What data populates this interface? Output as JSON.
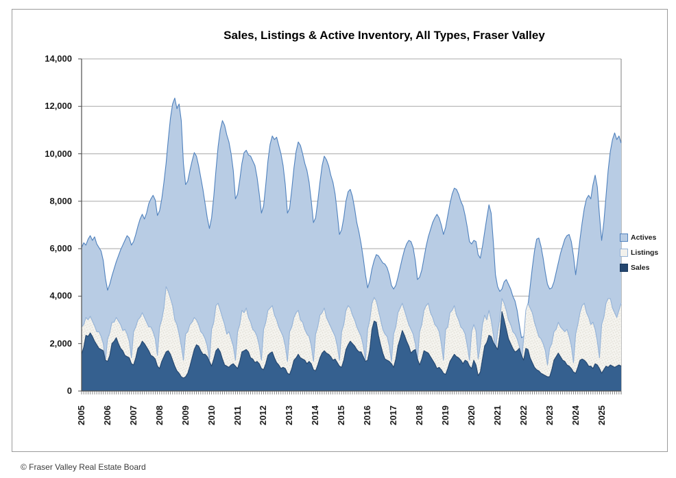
{
  "footer": {
    "copyright": "© Fraser Valley Real Estate Board"
  },
  "chart_data": {
    "type": "area",
    "title": "Sales, Listings & Active Inventory, All Types, Fraser Valley",
    "x_unit": "month",
    "x_range": "Jan 2005 - Oct 2025",
    "x_tick_labels": [
      "2005",
      "2006",
      "2007",
      "2008",
      "2009",
      "2010",
      "2011",
      "2012",
      "2013",
      "2014",
      "2015",
      "2016",
      "2017",
      "2018",
      "2019",
      "2020",
      "2021",
      "2022",
      "2023",
      "2024",
      "2025"
    ],
    "y_tick_values": [
      0,
      2000,
      4000,
      6000,
      8000,
      10000,
      12000,
      14000
    ],
    "y_tick_labels": [
      "0",
      "2,000",
      "4,000",
      "6,000",
      "8,000",
      "10,000",
      "12,000",
      "14,000"
    ],
    "ylim": [
      0,
      14000
    ],
    "grid": "horizontal",
    "legend_position": "right",
    "series": [
      {
        "name": "Actives",
        "fill": "#B8CCE4",
        "stroke": "#4F81BD",
        "legend_fill": "#B8CCE4",
        "legend_border": "#4F81BD",
        "values": [
          6050,
          6250,
          6150,
          6400,
          6550,
          6350,
          6500,
          6200,
          6050,
          5900,
          5500,
          4750,
          4250,
          4500,
          4850,
          5150,
          5450,
          5700,
          5950,
          6150,
          6350,
          6550,
          6450,
          6150,
          6300,
          6600,
          6950,
          7250,
          7450,
          7250,
          7500,
          7900,
          8100,
          8250,
          8050,
          7400,
          7600,
          8100,
          8800,
          9600,
          10600,
          11500,
          12100,
          12350,
          11900,
          12100,
          11400,
          9600,
          8700,
          8850,
          9300,
          9700,
          10050,
          9900,
          9500,
          9000,
          8500,
          7900,
          7300,
          6850,
          7300,
          8200,
          9300,
          10300,
          11000,
          11400,
          11200,
          10800,
          10500,
          10000,
          9300,
          8100,
          8300,
          8900,
          9600,
          10050,
          10150,
          9950,
          9900,
          9700,
          9500,
          9000,
          8300,
          7500,
          7800,
          8700,
          9700,
          10400,
          10750,
          10600,
          10700,
          10350,
          10000,
          9500,
          8700,
          7500,
          7700,
          8500,
          9400,
          10100,
          10500,
          10350,
          10000,
          9600,
          9300,
          8800,
          8000,
          7100,
          7300,
          8000,
          8800,
          9500,
          9900,
          9750,
          9500,
          9100,
          8800,
          8300,
          7500,
          6600,
          6800,
          7300,
          8000,
          8400,
          8500,
          8200,
          7700,
          7100,
          6700,
          6200,
          5600,
          4900,
          4350,
          4650,
          5150,
          5500,
          5750,
          5700,
          5550,
          5400,
          5350,
          5200,
          4900,
          4450,
          4300,
          4450,
          4800,
          5200,
          5600,
          5950,
          6200,
          6350,
          6300,
          6050,
          5500,
          4700,
          4800,
          5100,
          5600,
          6100,
          6500,
          6800,
          7100,
          7300,
          7450,
          7300,
          7000,
          6600,
          6900,
          7400,
          7900,
          8300,
          8550,
          8500,
          8300,
          8000,
          7800,
          7400,
          6900,
          6300,
          6200,
          6350,
          6300,
          5750,
          5600,
          6100,
          6700,
          7300,
          7850,
          7500,
          6300,
          4900,
          4400,
          4200,
          4300,
          4600,
          4700,
          4500,
          4300,
          4000,
          3800,
          3400,
          2800,
          2250,
          2300,
          2800,
          3600,
          4400,
          5200,
          5900,
          6400,
          6450,
          6100,
          5600,
          5000,
          4500,
          4300,
          4350,
          4600,
          5000,
          5400,
          5800,
          6100,
          6400,
          6550,
          6600,
          6300,
          5700,
          4900,
          5600,
          6400,
          7100,
          7700,
          8100,
          8250,
          8100,
          8700,
          9100,
          8600,
          7400,
          6350,
          7100,
          8200,
          9300,
          10100,
          10600,
          10880,
          10600,
          10750,
          10450
        ]
      },
      {
        "name": "Listings",
        "fill": "#F4F3EE",
        "texture": true,
        "stroke": "#95B3D7",
        "legend_fill": "#F2F1EC",
        "legend_border": "#95B3D7",
        "values": [
          2700,
          2800,
          3100,
          3000,
          3150,
          2950,
          2750,
          2500,
          2500,
          2300,
          2000,
          1300,
          2200,
          2450,
          2900,
          2900,
          3100,
          2950,
          2800,
          2550,
          2600,
          2400,
          2100,
          1400,
          2500,
          2700,
          3000,
          3100,
          3300,
          3100,
          2900,
          2700,
          2700,
          2500,
          2200,
          1500,
          2700,
          3000,
          3500,
          4400,
          4200,
          3900,
          3600,
          3000,
          2800,
          2400,
          1900,
          1300,
          2400,
          2500,
          2800,
          2900,
          3100,
          3000,
          2800,
          2500,
          2400,
          2200,
          1900,
          1300,
          2600,
          2900,
          3600,
          3700,
          3400,
          3100,
          2800,
          2400,
          2500,
          2200,
          1900,
          1300,
          2500,
          2800,
          3400,
          3300,
          3500,
          3100,
          2900,
          2600,
          2500,
          2300,
          1900,
          1300,
          2600,
          2900,
          3400,
          3500,
          3600,
          3200,
          3000,
          2700,
          2500,
          2300,
          1900,
          1250,
          2500,
          2700,
          3100,
          3300,
          3400,
          3000,
          2900,
          2600,
          2400,
          2300,
          1900,
          1250,
          2400,
          2700,
          3200,
          3300,
          3500,
          3100,
          2900,
          2700,
          2500,
          2300,
          1900,
          1300,
          2500,
          2800,
          3400,
          3600,
          3500,
          3200,
          3000,
          2700,
          2500,
          2300,
          1900,
          1300,
          2600,
          3000,
          3700,
          3950,
          3800,
          3400,
          3000,
          2600,
          2400,
          2300,
          1900,
          1250,
          2400,
          2700,
          3300,
          3500,
          3700,
          3400,
          3100,
          2800,
          2600,
          2400,
          2000,
          1300,
          2500,
          2800,
          3400,
          3600,
          3700,
          3300,
          3100,
          2800,
          2700,
          2500,
          2000,
          1300,
          2600,
          2700,
          3300,
          3400,
          3600,
          3200,
          3000,
          2700,
          2600,
          2400,
          1900,
          1300,
          2500,
          2800,
          2550,
          1350,
          1900,
          2800,
          3200,
          3000,
          3400,
          3000,
          2400,
          1700,
          2500,
          3000,
          3900,
          3700,
          3400,
          3000,
          2800,
          2500,
          2400,
          2200,
          1900,
          1200,
          2200,
          3400,
          3700,
          3500,
          3300,
          2900,
          2600,
          2300,
          2200,
          2000,
          1700,
          1100,
          1800,
          2000,
          2500,
          2600,
          2900,
          2700,
          2600,
          2500,
          2600,
          2300,
          1900,
          1200,
          2400,
          2800,
          3300,
          3600,
          3700,
          3300,
          3100,
          2800,
          2900,
          2600,
          2100,
          1400,
          2800,
          3100,
          3700,
          3900,
          3900,
          3500,
          3300,
          3100,
          3400,
          3700
        ]
      },
      {
        "name": "Sales",
        "fill": "#35608F",
        "stroke": "#24466E",
        "legend_fill": "#24466E",
        "legend_border": "#17375D",
        "values": [
          1550,
          1850,
          2350,
          2300,
          2450,
          2300,
          2100,
          1950,
          1800,
          1750,
          1700,
          1300,
          1250,
          1500,
          2000,
          2100,
          2250,
          2000,
          1800,
          1700,
          1500,
          1450,
          1400,
          1150,
          1100,
          1400,
          1800,
          1900,
          2100,
          2000,
          1850,
          1700,
          1500,
          1450,
          1350,
          1050,
          950,
          1250,
          1450,
          1650,
          1700,
          1550,
          1300,
          1050,
          850,
          750,
          600,
          550,
          600,
          750,
          1050,
          1400,
          1750,
          1950,
          1900,
          1700,
          1550,
          1550,
          1450,
          1250,
          1050,
          1350,
          1700,
          1800,
          1650,
          1350,
          1100,
          1050,
          1000,
          1100,
          1150,
          1050,
          950,
          1250,
          1650,
          1700,
          1750,
          1650,
          1400,
          1350,
          1200,
          1250,
          1150,
          950,
          900,
          1150,
          1500,
          1600,
          1650,
          1400,
          1200,
          1100,
          950,
          1000,
          950,
          750,
          700,
          950,
          1300,
          1400,
          1550,
          1400,
          1350,
          1300,
          1150,
          1250,
          1150,
          900,
          850,
          1100,
          1400,
          1600,
          1700,
          1600,
          1550,
          1450,
          1300,
          1350,
          1200,
          1050,
          1000,
          1300,
          1750,
          1950,
          2100,
          2000,
          1900,
          1750,
          1650,
          1650,
          1450,
          1250,
          1300,
          1750,
          2600,
          2950,
          2900,
          2350,
          1950,
          1600,
          1350,
          1300,
          1250,
          1150,
          1000,
          1350,
          1900,
          2200,
          2550,
          2350,
          2100,
          1900,
          1600,
          1700,
          1750,
          1350,
          1100,
          1350,
          1700,
          1650,
          1600,
          1450,
          1300,
          1150,
          950,
          1000,
          900,
          750,
          700,
          950,
          1250,
          1400,
          1550,
          1450,
          1400,
          1300,
          1150,
          1300,
          1250,
          1050,
          950,
          1300,
          1100,
          650,
          800,
          1350,
          1900,
          2050,
          2350,
          2300,
          2050,
          1900,
          1750,
          2350,
          3350,
          3000,
          2600,
          2200,
          2000,
          1800,
          1650,
          1700,
          1800,
          1500,
          1300,
          1800,
          1750,
          1400,
          1200,
          1000,
          900,
          850,
          750,
          700,
          650,
          600,
          600,
          900,
          1300,
          1450,
          1600,
          1450,
          1300,
          1250,
          1100,
          1050,
          950,
          800,
          750,
          1000,
          1300,
          1350,
          1300,
          1200,
          1050,
          1050,
          950,
          1150,
          1100,
          950,
          750,
          900,
          1050,
          1000,
          1100,
          1050,
          1000,
          1050,
          1100,
          1050
        ]
      }
    ]
  }
}
